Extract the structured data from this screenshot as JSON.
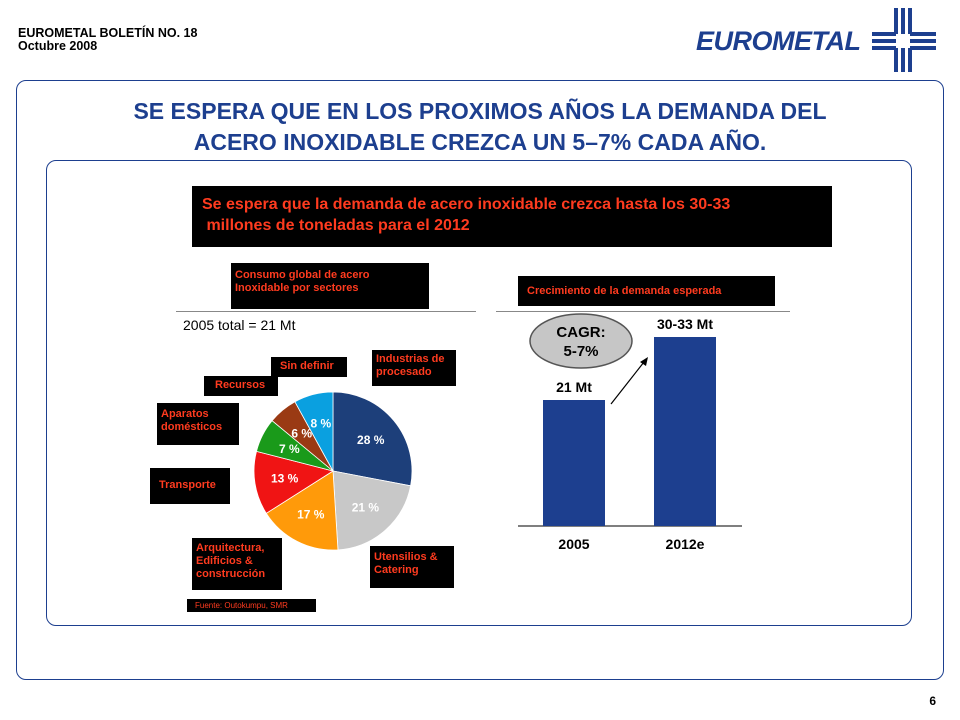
{
  "header": {
    "line1": "EUROMETAL BOLETÍN NO. 18",
    "line2": "Octubre 2008"
  },
  "logo": {
    "text": "EUROMETAL"
  },
  "title": {
    "line1": "SE ESPERA QUE EN LOS PROXIMOS AÑOS LA DEMANDA DEL",
    "line2": "ACERO INOXIDABLE CREZCA UN 5–7% CADA AÑO."
  },
  "banner": {
    "line1": "Se espera que la demanda de acero inoxidable crezca hasta los 30-33",
    "line2": " millones de toneladas para el 2012"
  },
  "pie_header": {
    "line1": "Consumo global de acero",
    "line2": "Inoxidable por sectores"
  },
  "bar_header": "Crecimiento de la demanda esperada",
  "pie_total": "2005 total = 21 Mt",
  "source": "Fuente: Outokumpu, SMR",
  "page_number": "6",
  "sector_labels": {
    "industrias": [
      "Industrias de",
      "procesado"
    ],
    "utensilios": [
      "Utensilios &",
      "Catering"
    ],
    "arquitectura": [
      "Arquitectura,",
      "Edificios &",
      "construcción"
    ],
    "transporte": [
      "Transporte"
    ],
    "aparatos": [
      "Aparatos",
      "domésticos"
    ],
    "recursos": [
      "Recursos"
    ],
    "sindefinir": [
      "Sin definir"
    ]
  },
  "chart_data": [
    {
      "type": "pie",
      "title": "",
      "slices": [
        {
          "label": "28 %",
          "value": 28,
          "color": "#1d3f7a"
        },
        {
          "label": "21 %",
          "value": 21,
          "color": "#c8c8c8"
        },
        {
          "label": "17 %",
          "value": 17,
          "color": "#ff9a0a"
        },
        {
          "label": "13 %",
          "value": 13,
          "color": "#f01414"
        },
        {
          "label": "7 %",
          "value": 7,
          "color": "#1a9a1a"
        },
        {
          "label": "6 %",
          "value": 6,
          "color": "#9a3a14"
        },
        {
          "label": "8 %",
          "value": 8,
          "color": "#0aa0e0"
        }
      ]
    },
    {
      "type": "bar",
      "categories": [
        "2005",
        "2012e"
      ],
      "values": [
        21,
        31.5
      ],
      "value_labels": [
        "21 Mt",
        "30-33 Mt"
      ],
      "annotation": {
        "line1": "CAGR:",
        "line2": "5-7%"
      },
      "color": "#1d3f8f",
      "ylim": [
        0,
        36
      ]
    }
  ]
}
